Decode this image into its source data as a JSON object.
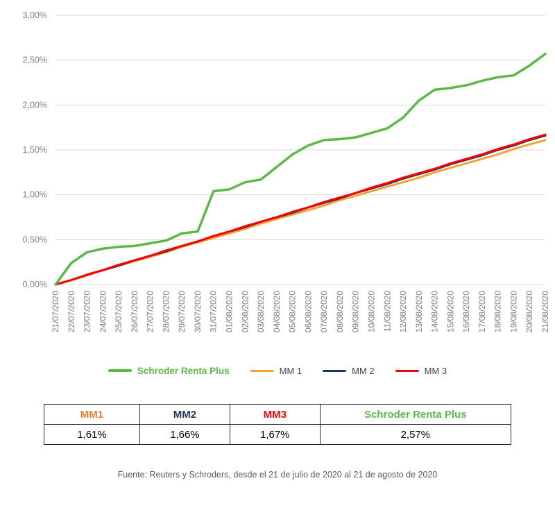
{
  "chart_data": {
    "type": "line",
    "title": "",
    "xlabel": "",
    "ylabel": "",
    "ylim": [
      0,
      3.0
    ],
    "ytick_step": 0.5,
    "ytick_labels": [
      "0,00%",
      "0,50%",
      "1,00%",
      "1,50%",
      "2,00%",
      "2,50%",
      "3,00%"
    ],
    "grid": true,
    "legend_position": "bottom",
    "x": [
      "21/07/2020",
      "22/07/2020",
      "23/07/2020",
      "24/07/2020",
      "25/07/2020",
      "26/07/2020",
      "27/07/2020",
      "28/07/2020",
      "29/07/2020",
      "30/07/2020",
      "31/07/2020",
      "01/08/2020",
      "02/08/2020",
      "03/08/2020",
      "04/08/2020",
      "05/08/2020",
      "06/08/2020",
      "07/08/2020",
      "08/08/2020",
      "09/08/2020",
      "10/08/2020",
      "11/08/2020",
      "12/08/2020",
      "13/08/2020",
      "14/08/2020",
      "15/08/2020",
      "16/08/2020",
      "17/08/2020",
      "18/08/2020",
      "19/08/2020",
      "20/08/2020",
      "21/08/2020"
    ],
    "series": [
      {
        "name": "Schroder Renta Plus",
        "color": "#5BBA47",
        "width": 3.5,
        "values": [
          0.0,
          0.24,
          0.36,
          0.4,
          0.42,
          0.43,
          0.46,
          0.49,
          0.57,
          0.59,
          1.04,
          1.06,
          1.14,
          1.17,
          1.31,
          1.45,
          1.55,
          1.61,
          1.62,
          1.64,
          1.69,
          1.74,
          1.86,
          2.05,
          2.17,
          2.19,
          2.22,
          2.27,
          2.31,
          2.33,
          2.44,
          2.57
        ]
      },
      {
        "name": "MM 1",
        "color": "#F2A432",
        "width": 3,
        "values": [
          0.0,
          0.05,
          0.1,
          0.16,
          0.21,
          0.26,
          0.31,
          0.36,
          0.42,
          0.47,
          0.52,
          0.57,
          0.62,
          0.68,
          0.73,
          0.78,
          0.83,
          0.88,
          0.94,
          0.99,
          1.04,
          1.09,
          1.14,
          1.19,
          1.25,
          1.3,
          1.35,
          1.4,
          1.45,
          1.51,
          1.56,
          1.61
        ]
      },
      {
        "name": "MM 2",
        "color": "#1F3864",
        "width": 3,
        "values": [
          0.0,
          0.05,
          0.11,
          0.16,
          0.21,
          0.27,
          0.32,
          0.37,
          0.43,
          0.48,
          0.54,
          0.59,
          0.64,
          0.7,
          0.75,
          0.8,
          0.86,
          0.91,
          0.96,
          1.02,
          1.07,
          1.12,
          1.18,
          1.23,
          1.28,
          1.34,
          1.39,
          1.44,
          1.5,
          1.55,
          1.61,
          1.66
        ]
      },
      {
        "name": "MM 3",
        "color": "#FF0000",
        "width": 3,
        "values": [
          0.0,
          0.05,
          0.11,
          0.16,
          0.22,
          0.27,
          0.32,
          0.38,
          0.43,
          0.48,
          0.54,
          0.59,
          0.65,
          0.7,
          0.75,
          0.81,
          0.86,
          0.92,
          0.97,
          1.02,
          1.08,
          1.13,
          1.19,
          1.24,
          1.29,
          1.35,
          1.4,
          1.45,
          1.51,
          1.56,
          1.62,
          1.67
        ]
      }
    ]
  },
  "summary_table": {
    "columns": [
      {
        "label": "MM1",
        "value": "1,61%",
        "color": "#ED7D31"
      },
      {
        "label": "MM2",
        "value": "1,66%",
        "color": "#1F3864"
      },
      {
        "label": "MM3",
        "value": "1,67%",
        "color": "#FF0000"
      },
      {
        "label": "Schroder Renta Plus",
        "value": "2,57%",
        "color": "#5BBA47"
      }
    ]
  },
  "footer": {
    "source": "Fuente: Reuters y Schroders, desde el 21 de julio de 2020 al 21 de agosto de 2020"
  }
}
